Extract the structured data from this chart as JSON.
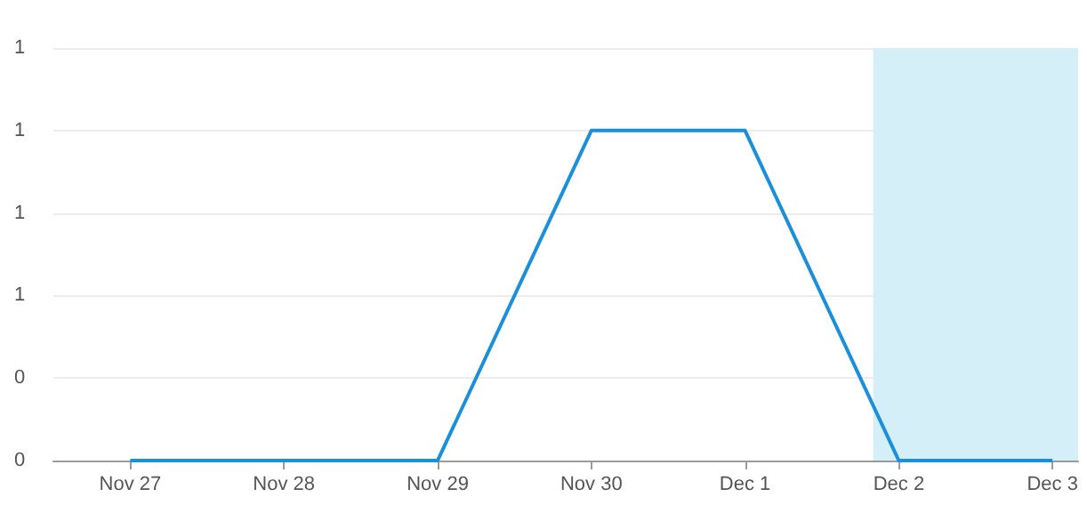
{
  "chart_data": {
    "type": "line",
    "x": [
      "--11-27",
      "--11-28",
      "--11-29",
      "--11-30",
      "--12-01",
      "--12-02",
      "--12-03"
    ],
    "series": [
      {
        "color": "#1a90dd",
        "values": [
          0,
          0,
          0,
          1,
          1,
          0,
          0
        ]
      }
    ],
    "xlim": [
      "--11-26T12:00",
      "--12-03T04:00"
    ],
    "xticks": [
      {
        "value": "--11-27",
        "label": "Nov 27"
      },
      {
        "value": "--11-28",
        "label": "Nov 28"
      },
      {
        "value": "--11-29",
        "label": "Nov 29"
      },
      {
        "value": "--11-30",
        "label": "Nov 30"
      },
      {
        "value": "--12-01",
        "label": "Dec 1"
      },
      {
        "value": "--12-02",
        "label": "Dec 2"
      },
      {
        "value": "--12-03",
        "label": "Dec 3"
      }
    ],
    "ylim": [
      0,
      1.25
    ],
    "yticks": [
      {
        "value": 0,
        "label": "0"
      },
      {
        "value": 0.25,
        "label": "0"
      },
      {
        "value": 0.5,
        "label": "1"
      },
      {
        "value": 0.75,
        "label": "1"
      },
      {
        "value": 1,
        "label": "1"
      },
      {
        "value": 1.25,
        "label": "1"
      }
    ],
    "bands": [
      {
        "axis": "x",
        "from": "--12-01T20:00",
        "to": "--12-03T04:00",
        "color": "#d5eff9"
      }
    ],
    "grid": "y",
    "marker": "none",
    "line_style": "solid"
  }
}
